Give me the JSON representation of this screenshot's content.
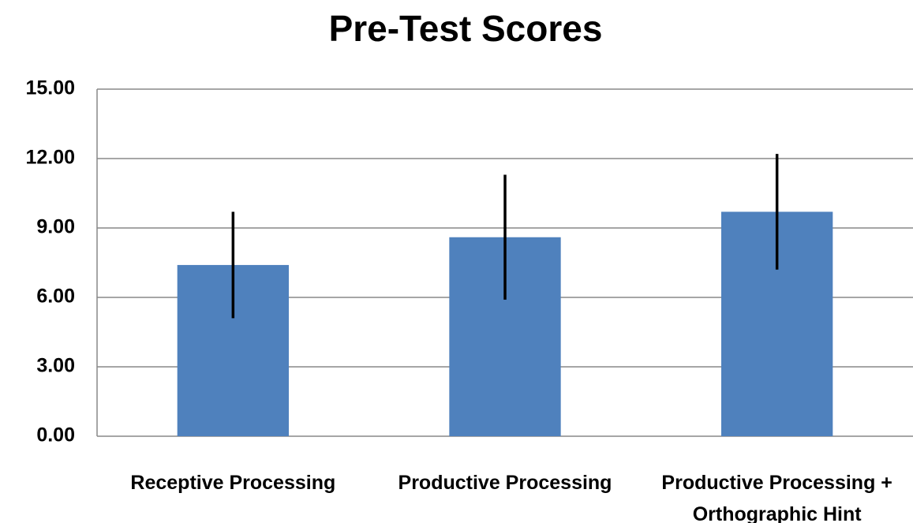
{
  "chart_data": {
    "type": "bar",
    "title": "Pre-Test Scores",
    "categories": [
      "Receptive Processing",
      "Productive Processing",
      "Productive Processing + Orthographic Hint"
    ],
    "values": [
      7.4,
      8.6,
      9.7
    ],
    "errors": [
      2.3,
      2.7,
      2.5
    ],
    "color": "#4f81bd",
    "ylim": [
      0,
      15
    ],
    "yticks": [
      {
        "value": 0,
        "label": "0.00"
      },
      {
        "value": 3,
        "label": "3.00"
      },
      {
        "value": 6,
        "label": "6.00"
      },
      {
        "value": 9,
        "label": "9.00"
      },
      {
        "value": 12,
        "label": "12.00"
      },
      {
        "value": 15,
        "label": "15.00"
      }
    ],
    "grid": true
  }
}
